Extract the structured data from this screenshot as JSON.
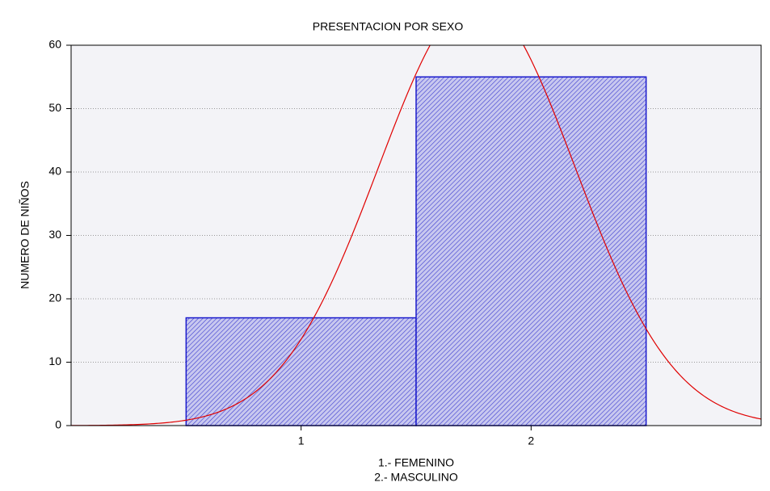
{
  "chart_data": {
    "type": "histogram",
    "title": "PRESENTACION POR SEXO",
    "ylabel": "NUMERO DE NIÑOS",
    "xlabel": [
      "1.- FEMENINO",
      "2.- MASCULINO"
    ],
    "bins": [
      0.5,
      1.5,
      2.5
    ],
    "values": [
      17,
      55
    ],
    "color": "#1a1acc",
    "fit_color": "#e00000",
    "normal_fit": true,
    "xlim": [
      0,
      3
    ],
    "xticks": [
      1,
      2
    ],
    "ylim": [
      0,
      60
    ],
    "yticks": [
      0,
      10,
      20,
      30,
      40,
      50,
      60
    ],
    "grid": true
  }
}
